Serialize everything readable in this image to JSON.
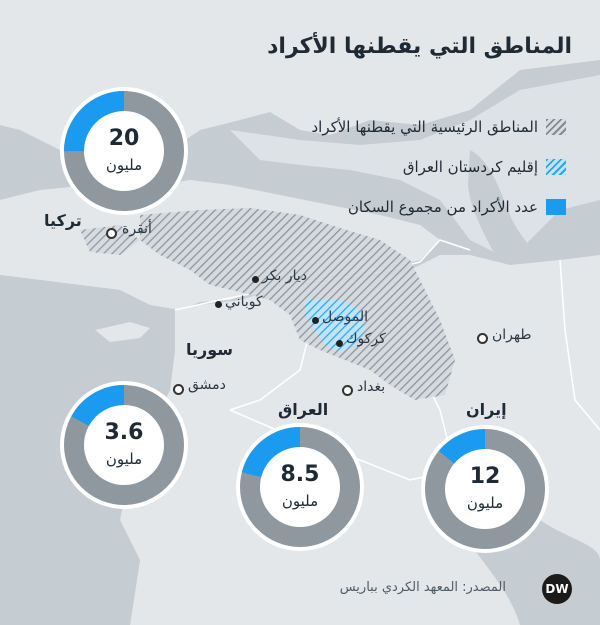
{
  "title": "المناطق التي يقطنها الأكراد",
  "legend": [
    {
      "label": "المناطق الرئيسية التي يقطنها الأكراد",
      "swatch": "hatch-gray"
    },
    {
      "label": "إقليم كردستان العراق",
      "swatch": "hatch-blue"
    },
    {
      "label": "عدد الأكراد من مجموع السكان",
      "swatch": "solid-blue"
    }
  ],
  "countries": {
    "turkey": "تركيا",
    "syria": "سوريا",
    "iraq": "العراق",
    "iran": "إيران"
  },
  "cities": {
    "ankara": "أنقرة",
    "diyarbakir": "ديار بكر",
    "kobani": "كوباني",
    "mosul": "الموصل",
    "kirkuk": "كركوك",
    "tehran": "طهران",
    "damascus": "دمشق",
    "baghdad": "بغداد"
  },
  "donuts": [
    {
      "id": "turkey",
      "value": "20",
      "unit": "مليون",
      "fraction": 0.25
    },
    {
      "id": "syria",
      "value": "3.6",
      "unit": "مليون",
      "fraction": 0.17
    },
    {
      "id": "iraq",
      "value": "8.5",
      "unit": "مليون",
      "fraction": 0.21
    },
    {
      "id": "iran",
      "value": "12",
      "unit": "مليون",
      "fraction": 0.14
    }
  ],
  "source": "المصدر: المعهد الكردي بباريس",
  "logo": "DW",
  "colors": {
    "sea": "#c5cdd3",
    "land": "#e3e7ea",
    "kurdish_area": "#7f8a93",
    "krg": "#2aa5ee",
    "donut_blue": "#1a9bf0",
    "donut_gray": "#8f989f"
  }
}
